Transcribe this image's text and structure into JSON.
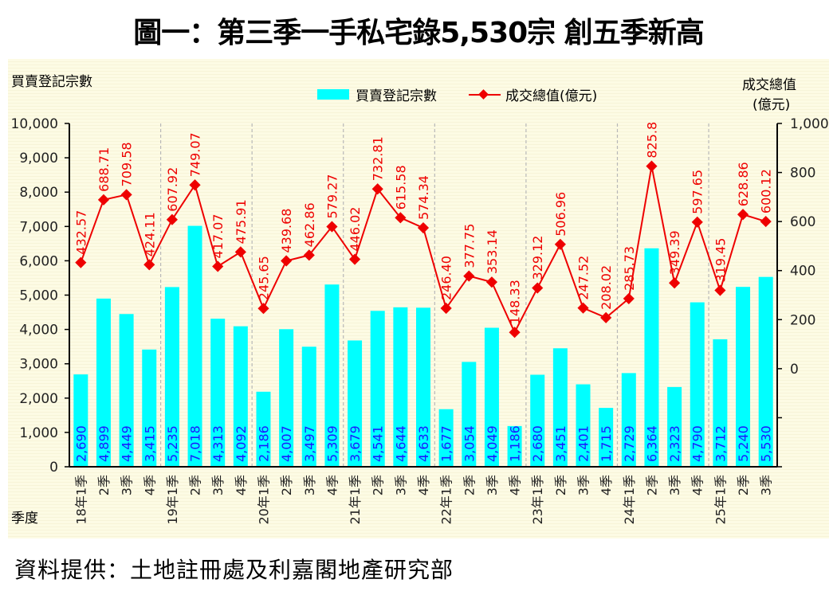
{
  "title": "圖一：第三季一手私宅錄5,530宗 創五季新高",
  "source": "資料提供：土地註冊處及利嘉閣地產研究部",
  "colors": {
    "bar": "#00ffff",
    "bar_label": "#1a1aff",
    "line": "#ee0000",
    "axis": "#000000",
    "divider": "#b8b8b8"
  },
  "chart_data": {
    "type": "bar+line",
    "title": "圖一：第三季一手私宅錄5,530宗 創五季新高",
    "xlabel": "季度",
    "ylabel": "買賣登記宗數",
    "y2label_line1": "成交總值",
    "y2label_line2": "(億元)",
    "legend": {
      "position": "top-center",
      "entries": [
        "買賣登記宗數",
        "成交總值(億元)"
      ]
    },
    "ylim": [
      0,
      10000
    ],
    "yticks": [
      "0",
      "1,000",
      "2,000",
      "3,000",
      "4,000",
      "5,000",
      "6,000",
      "7,000",
      "8,000",
      "9,000",
      "10,000"
    ],
    "y2lim": [
      -400,
      1000
    ],
    "y2ticks": [
      "",
      "",
      "0",
      "200",
      "400",
      "600",
      "800",
      "1,000"
    ],
    "categories": [
      "18年1季",
      "2季",
      "3季",
      "4季",
      "19年1季",
      "2季",
      "3季",
      "4季",
      "20年1季",
      "2季",
      "3季",
      "4季",
      "21年1季",
      "2季",
      "3季",
      "4季",
      "22年1季",
      "2季",
      "3季",
      "4季",
      "23年1季",
      "2季",
      "3季",
      "4季",
      "24年1季",
      "2季",
      "3季",
      "4季",
      "25年1季",
      "2季",
      "3季"
    ],
    "series": [
      {
        "name": "買賣登記宗數",
        "type": "bar",
        "axis": "left",
        "values": [
          2690,
          4899,
          4449,
          3415,
          5235,
          7018,
          4313,
          4092,
          2186,
          4007,
          3497,
          5309,
          3679,
          4541,
          4644,
          4633,
          1677,
          3054,
          4049,
          1186,
          2680,
          3451,
          2401,
          1715,
          2729,
          6364,
          2323,
          4790,
          3712,
          5240,
          5530
        ],
        "labels": [
          "2,690",
          "4,899",
          "4,449",
          "3,415",
          "5,235",
          "7,018",
          "4,313",
          "4,092",
          "2,186",
          "4,007",
          "3,497",
          "5,309",
          "3,679",
          "4,541",
          "4,644",
          "4,633",
          "1,677",
          "3,054",
          "4,049",
          "1,186",
          "2,680",
          "3,451",
          "2,401",
          "1,715",
          "2,729",
          "6,364",
          "2,323",
          "4,790",
          "3,712",
          "5,240",
          "5,530"
        ]
      },
      {
        "name": "成交總值(億元)",
        "type": "line",
        "axis": "right",
        "values": [
          432.57,
          688.71,
          709.58,
          424.11,
          607.92,
          749.07,
          417.07,
          475.91,
          245.65,
          439.68,
          462.86,
          579.27,
          446.02,
          732.81,
          615.58,
          574.34,
          246.4,
          377.75,
          353.14,
          148.33,
          329.12,
          506.96,
          247.52,
          208.02,
          285.73,
          825.8,
          349.39,
          597.65,
          319.45,
          628.86,
          600.12
        ],
        "labels": [
          "432.57",
          "688.71",
          "709.58",
          "424.11",
          "607.92",
          "749.07",
          "417.07",
          "475.91",
          "245.65",
          "439.68",
          "462.86",
          "579.27",
          "446.02",
          "732.81",
          "615.58",
          "574.34",
          "246.40",
          "377.75",
          "353.14",
          "148.33",
          "329.12",
          "506.96",
          "247.52",
          "208.02",
          "285.73",
          "825.8",
          "349.39",
          "597.65",
          "319.45",
          "628.86",
          "600.12"
        ]
      }
    ]
  }
}
